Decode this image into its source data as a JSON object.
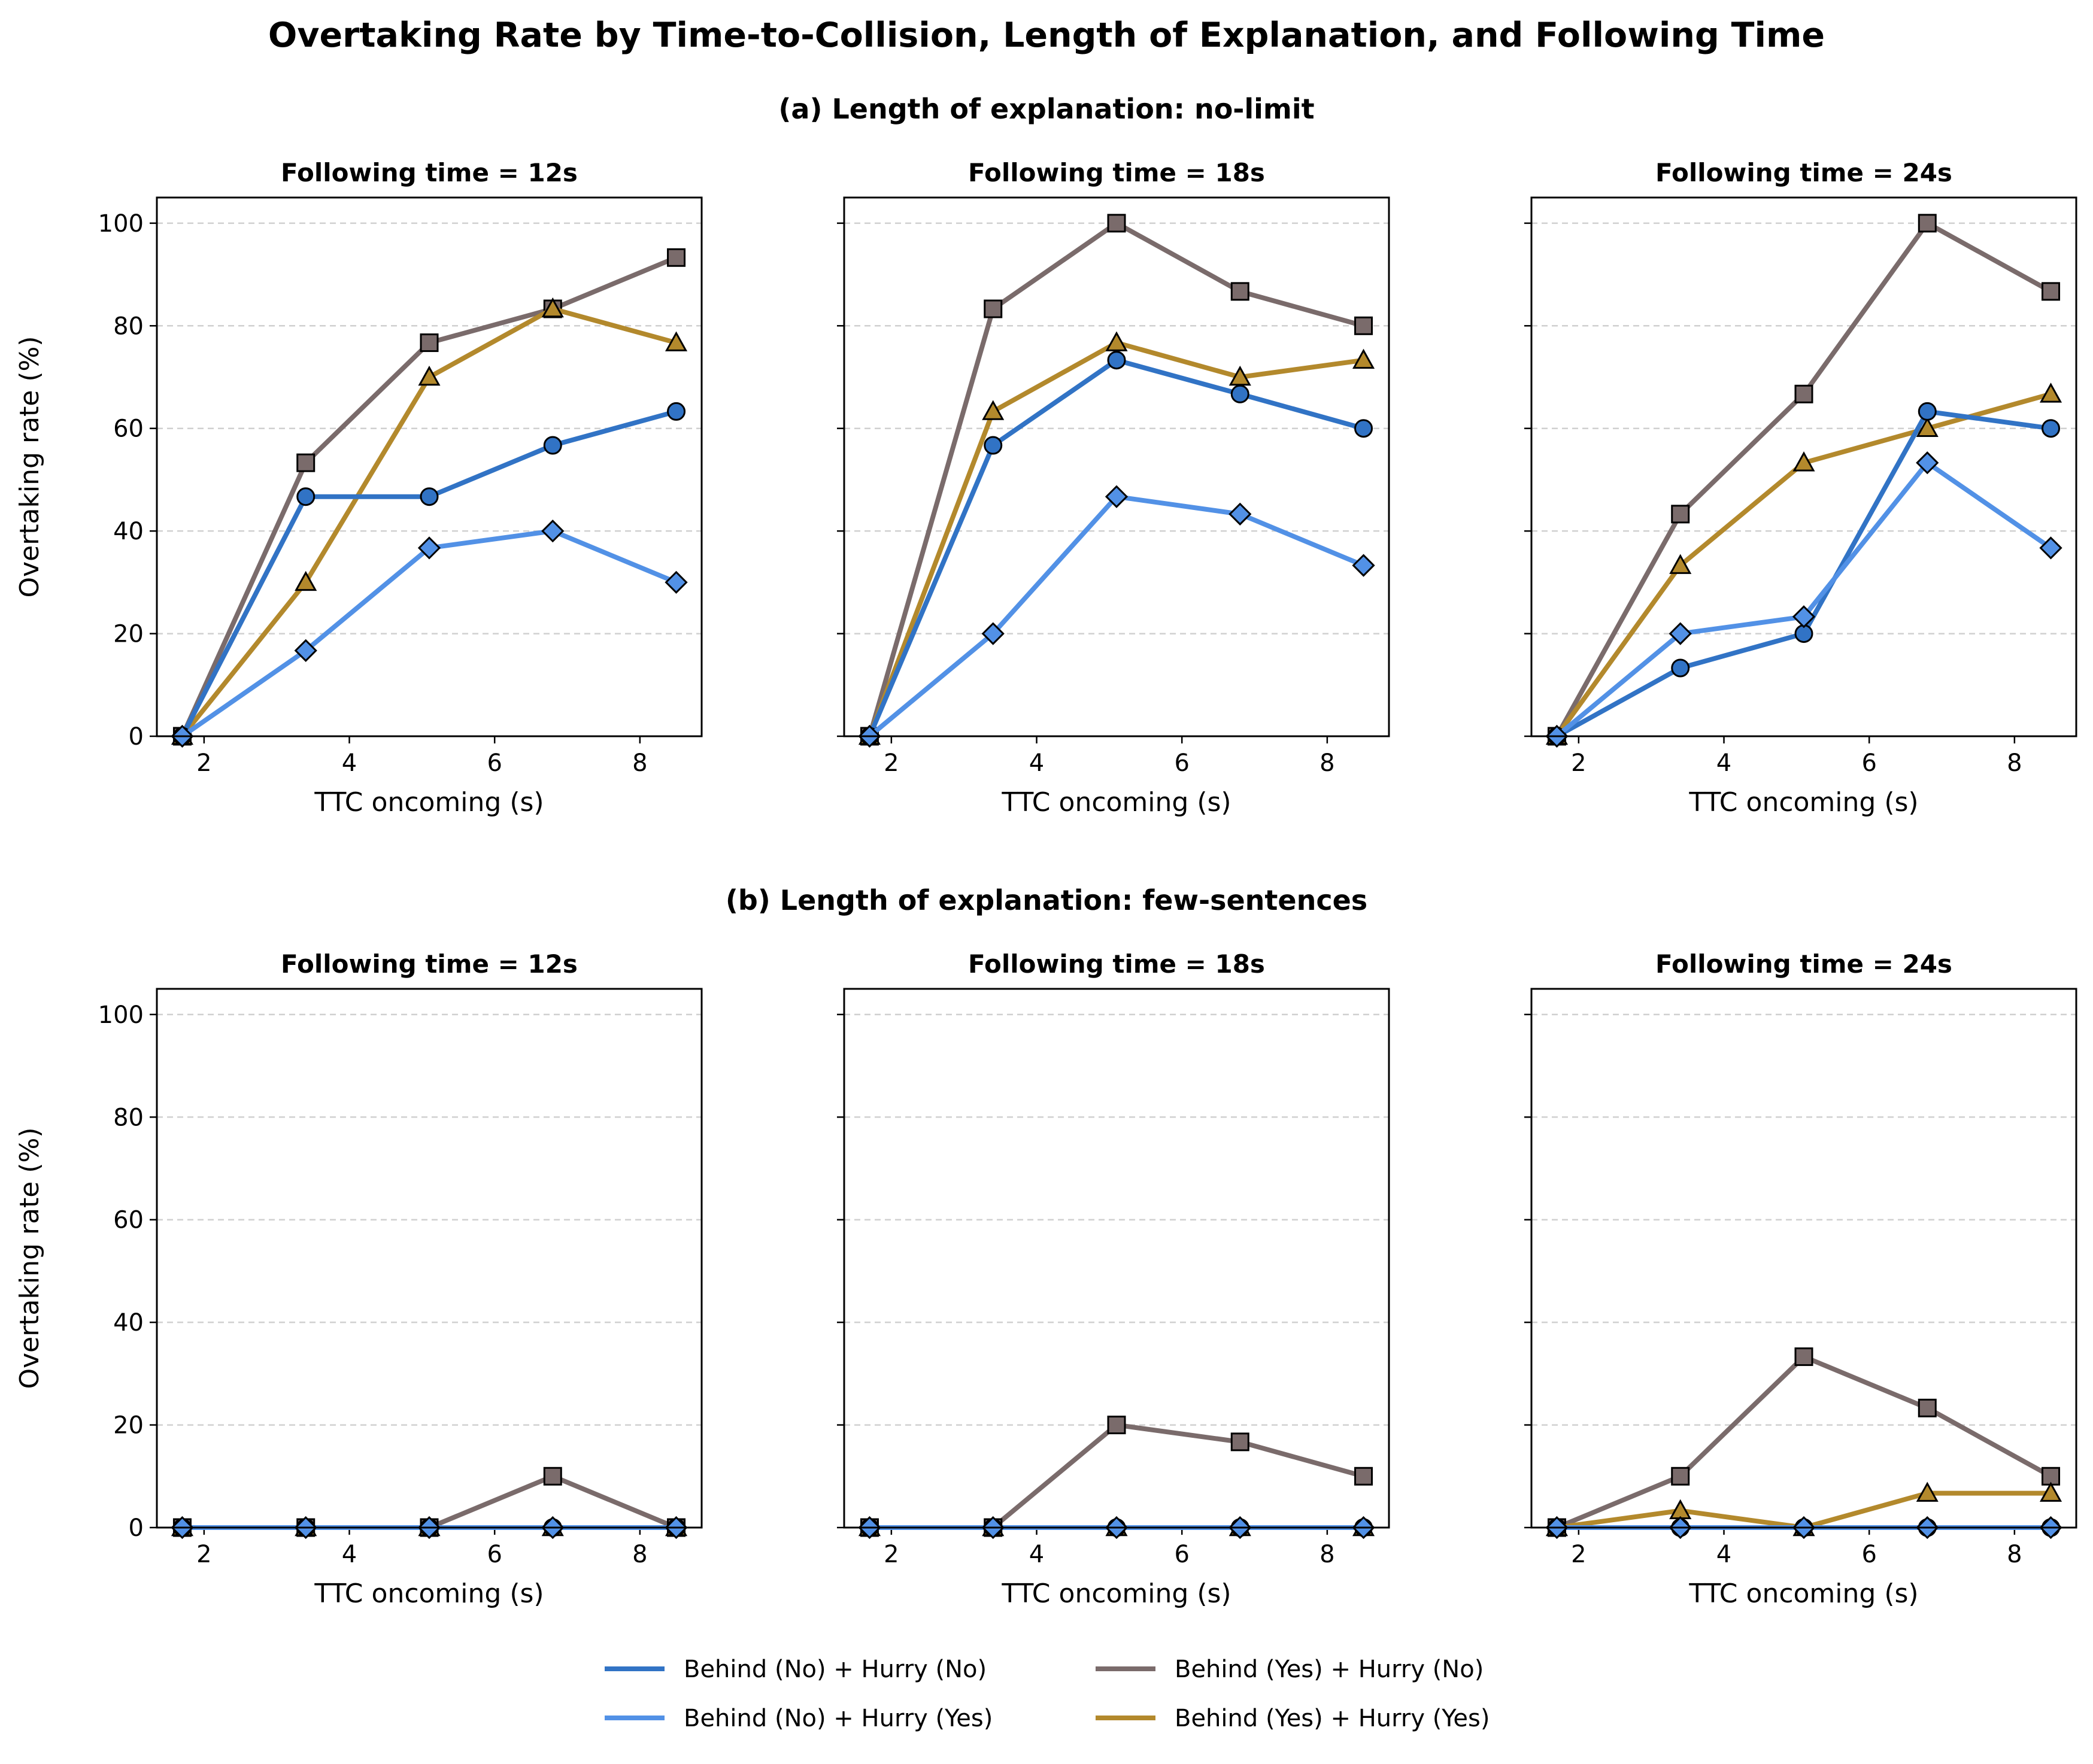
{
  "title": "Overtaking Rate by Time-to-Collision, Length of Explanation, and Following Time",
  "rows": [
    {
      "label": "(a) Length of explanation: no-limit"
    },
    {
      "label": "(b) Length of explanation: few-sentences"
    }
  ],
  "axes": {
    "xlabel": "TTC oncoming (s)",
    "ylabel": "Overtaking rate (%)",
    "xlim": [
      1.35,
      8.85
    ],
    "ylim": [
      0,
      105
    ],
    "xticks": [
      2,
      4,
      6,
      8
    ],
    "yticks": [
      0,
      20,
      40,
      60,
      80,
      100
    ],
    "grid": "y-dashed"
  },
  "legend": {
    "placement": "bottom-center",
    "columns": 2,
    "entries": [
      {
        "label": "Behind (No) + Hurry (No)",
        "color": "#3173c5",
        "marker": "circle"
      },
      {
        "label": "Behind (No) + Hurry (Yes)",
        "color": "#5291e6",
        "marker": "diamond"
      },
      {
        "label": "Behind (Yes) + Hurry (No)",
        "color": "#7a6b6b",
        "marker": "square"
      },
      {
        "label": "Behind (Yes) + Hurry (Yes)",
        "color": "#b3892c",
        "marker": "triangle"
      }
    ]
  },
  "chart_data": [
    {
      "type": "line",
      "title": "Following time = 12s",
      "row": 0,
      "x": [
        1.7,
        3.4,
        5.1,
        6.8,
        8.5
      ],
      "series": [
        {
          "name": "Behind (No) + Hurry (No)",
          "values": [
            0,
            46.7,
            46.7,
            56.7,
            63.3
          ]
        },
        {
          "name": "Behind (No) + Hurry (Yes)",
          "values": [
            0,
            16.7,
            36.7,
            40.0,
            30.0
          ]
        },
        {
          "name": "Behind (Yes) + Hurry (No)",
          "values": [
            0,
            53.3,
            76.7,
            83.3,
            93.3
          ]
        },
        {
          "name": "Behind (Yes) + Hurry (Yes)",
          "values": [
            0,
            30.0,
            70.0,
            83.3,
            76.7
          ]
        }
      ]
    },
    {
      "type": "line",
      "title": "Following time = 18s",
      "row": 0,
      "x": [
        1.7,
        3.4,
        5.1,
        6.8,
        8.5
      ],
      "series": [
        {
          "name": "Behind (No) + Hurry (No)",
          "values": [
            0,
            56.7,
            73.3,
            66.7,
            60.0
          ]
        },
        {
          "name": "Behind (No) + Hurry (Yes)",
          "values": [
            0,
            20.0,
            46.7,
            43.3,
            33.3
          ]
        },
        {
          "name": "Behind (Yes) + Hurry (No)",
          "values": [
            0,
            83.3,
            100.0,
            86.7,
            80.0
          ]
        },
        {
          "name": "Behind (Yes) + Hurry (Yes)",
          "values": [
            0,
            63.3,
            76.7,
            70.0,
            73.3
          ]
        }
      ]
    },
    {
      "type": "line",
      "title": "Following time = 24s",
      "row": 0,
      "x": [
        1.7,
        3.4,
        5.1,
        6.8,
        8.5
      ],
      "series": [
        {
          "name": "Behind (No) + Hurry (No)",
          "values": [
            0,
            13.3,
            20.0,
            63.3,
            60.0
          ]
        },
        {
          "name": "Behind (No) + Hurry (Yes)",
          "values": [
            0,
            20.0,
            23.3,
            53.3,
            36.7
          ]
        },
        {
          "name": "Behind (Yes) + Hurry (No)",
          "values": [
            0,
            43.3,
            66.7,
            100.0,
            86.7
          ]
        },
        {
          "name": "Behind (Yes) + Hurry (Yes)",
          "values": [
            0,
            33.3,
            53.3,
            60.0,
            66.7
          ]
        }
      ]
    },
    {
      "type": "line",
      "title": "Following time = 12s",
      "row": 1,
      "x": [
        1.7,
        3.4,
        5.1,
        6.8,
        8.5
      ],
      "series": [
        {
          "name": "Behind (No) + Hurry (No)",
          "values": [
            0,
            0,
            0,
            0,
            0
          ]
        },
        {
          "name": "Behind (No) + Hurry (Yes)",
          "values": [
            0,
            0,
            0,
            0,
            0
          ]
        },
        {
          "name": "Behind (Yes) + Hurry (No)",
          "values": [
            0,
            0,
            0,
            10.0,
            0
          ]
        },
        {
          "name": "Behind (Yes) + Hurry (Yes)",
          "values": [
            0,
            0,
            0,
            0,
            0
          ]
        }
      ]
    },
    {
      "type": "line",
      "title": "Following time = 18s",
      "row": 1,
      "x": [
        1.7,
        3.4,
        5.1,
        6.8,
        8.5
      ],
      "series": [
        {
          "name": "Behind (No) + Hurry (No)",
          "values": [
            0,
            0,
            0,
            0,
            0
          ]
        },
        {
          "name": "Behind (No) + Hurry (Yes)",
          "values": [
            0,
            0,
            0,
            0,
            0
          ]
        },
        {
          "name": "Behind (Yes) + Hurry (No)",
          "values": [
            0,
            0,
            20.0,
            16.7,
            10.0
          ]
        },
        {
          "name": "Behind (Yes) + Hurry (Yes)",
          "values": [
            0,
            0,
            0,
            0,
            0
          ]
        }
      ]
    },
    {
      "type": "line",
      "title": "Following time = 24s",
      "row": 1,
      "x": [
        1.7,
        3.4,
        5.1,
        6.8,
        8.5
      ],
      "series": [
        {
          "name": "Behind (No) + Hurry (No)",
          "values": [
            0,
            0,
            0,
            0,
            0
          ]
        },
        {
          "name": "Behind (No) + Hurry (Yes)",
          "values": [
            0,
            0,
            0,
            0,
            0
          ]
        },
        {
          "name": "Behind (Yes) + Hurry (No)",
          "values": [
            0,
            10.0,
            33.3,
            23.3,
            10.0
          ]
        },
        {
          "name": "Behind (Yes) + Hurry (Yes)",
          "values": [
            0,
            3.3,
            0,
            6.7,
            6.7
          ]
        }
      ]
    }
  ]
}
